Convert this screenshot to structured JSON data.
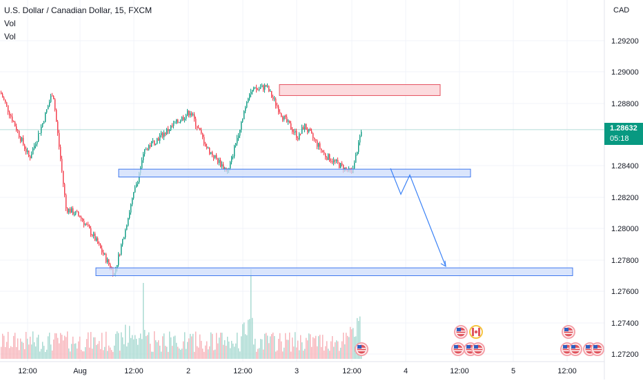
{
  "legend": {
    "symbol": "U.S. Dollar / Canadian Dollar, 15, FXCM",
    "line2": "Vol",
    "line3": "Vol"
  },
  "price_axis": {
    "currency": "CAD",
    "ticks": [
      "1.29200",
      "1.29000",
      "1.28800",
      "1.28400",
      "1.28200",
      "1.28000",
      "1.27800",
      "1.27600",
      "1.27400",
      "1.27200"
    ]
  },
  "time_axis": {
    "ticks": [
      "12:00",
      "Aug",
      "12:00",
      "2",
      "12:00",
      "3",
      "12:00",
      "4",
      "12:00",
      "5",
      "12:00"
    ]
  },
  "last_price": {
    "price": "1.28632",
    "countdown": "05:18"
  },
  "colors": {
    "up": "#089981",
    "down": "#f23645",
    "vol_up": "#a4d8cf",
    "vol_down": "#f7b0b6",
    "resistance_fill": "#fcd5d8",
    "resistance_stroke": "#e5505e",
    "support_fill": "#cddcfb",
    "support_stroke": "#3f77ee",
    "projection": "#3b82f6",
    "price_line": "#b2dcd6",
    "grid": "#f0f3fa"
  },
  "chart_data": {
    "type": "candlestick",
    "instrument": "USD/CAD",
    "interval": "15",
    "source": "FXCM",
    "ylim": [
      1.2718,
      1.2945
    ],
    "zones": [
      {
        "kind": "resistance",
        "low": 1.2885,
        "high": 1.2892
      },
      {
        "kind": "support",
        "low": 1.2833,
        "high": 1.2838
      },
      {
        "kind": "support",
        "low": 1.277,
        "high": 1.2775
      }
    ],
    "projection_path": [
      1.28385,
      1.2822,
      1.28343,
      1.2776
    ],
    "key_prices": [
      1.2887,
      1.2845,
      1.2866,
      1.2888,
      1.2813,
      1.2808,
      1.2795,
      1.2771,
      1.2813,
      1.2851,
      1.2862,
      1.2875,
      1.2851,
      1.2836,
      1.2887,
      1.2891,
      1.2871,
      1.2858,
      1.2866,
      1.2847,
      1.2835,
      1.28632
    ]
  }
}
